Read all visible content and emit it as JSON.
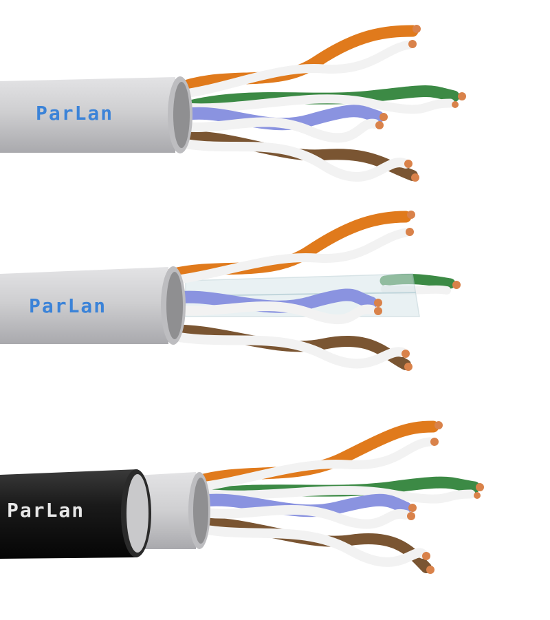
{
  "cables": [
    {
      "brand_label": "ParLan",
      "jacket_color": "#cfcfd1",
      "label_color": "#3b83d8",
      "variant": "utp"
    },
    {
      "brand_label": "ParLan",
      "jacket_color": "#cfcfd1",
      "label_color": "#3b83d8",
      "variant": "utp-separator"
    },
    {
      "brand_label": "ParLan",
      "jacket_color": "#1a1a1a",
      "label_color": "#e8e8e8",
      "variant": "outdoor-double-jacket"
    }
  ],
  "colors": {
    "orange": "#e07a1c",
    "green": "#3c8a45",
    "blue": "#8a93e0",
    "brown": "#7a5532",
    "white": "#f2f2f2",
    "copper": "#d9824a",
    "separator": "#d8e6ea"
  }
}
